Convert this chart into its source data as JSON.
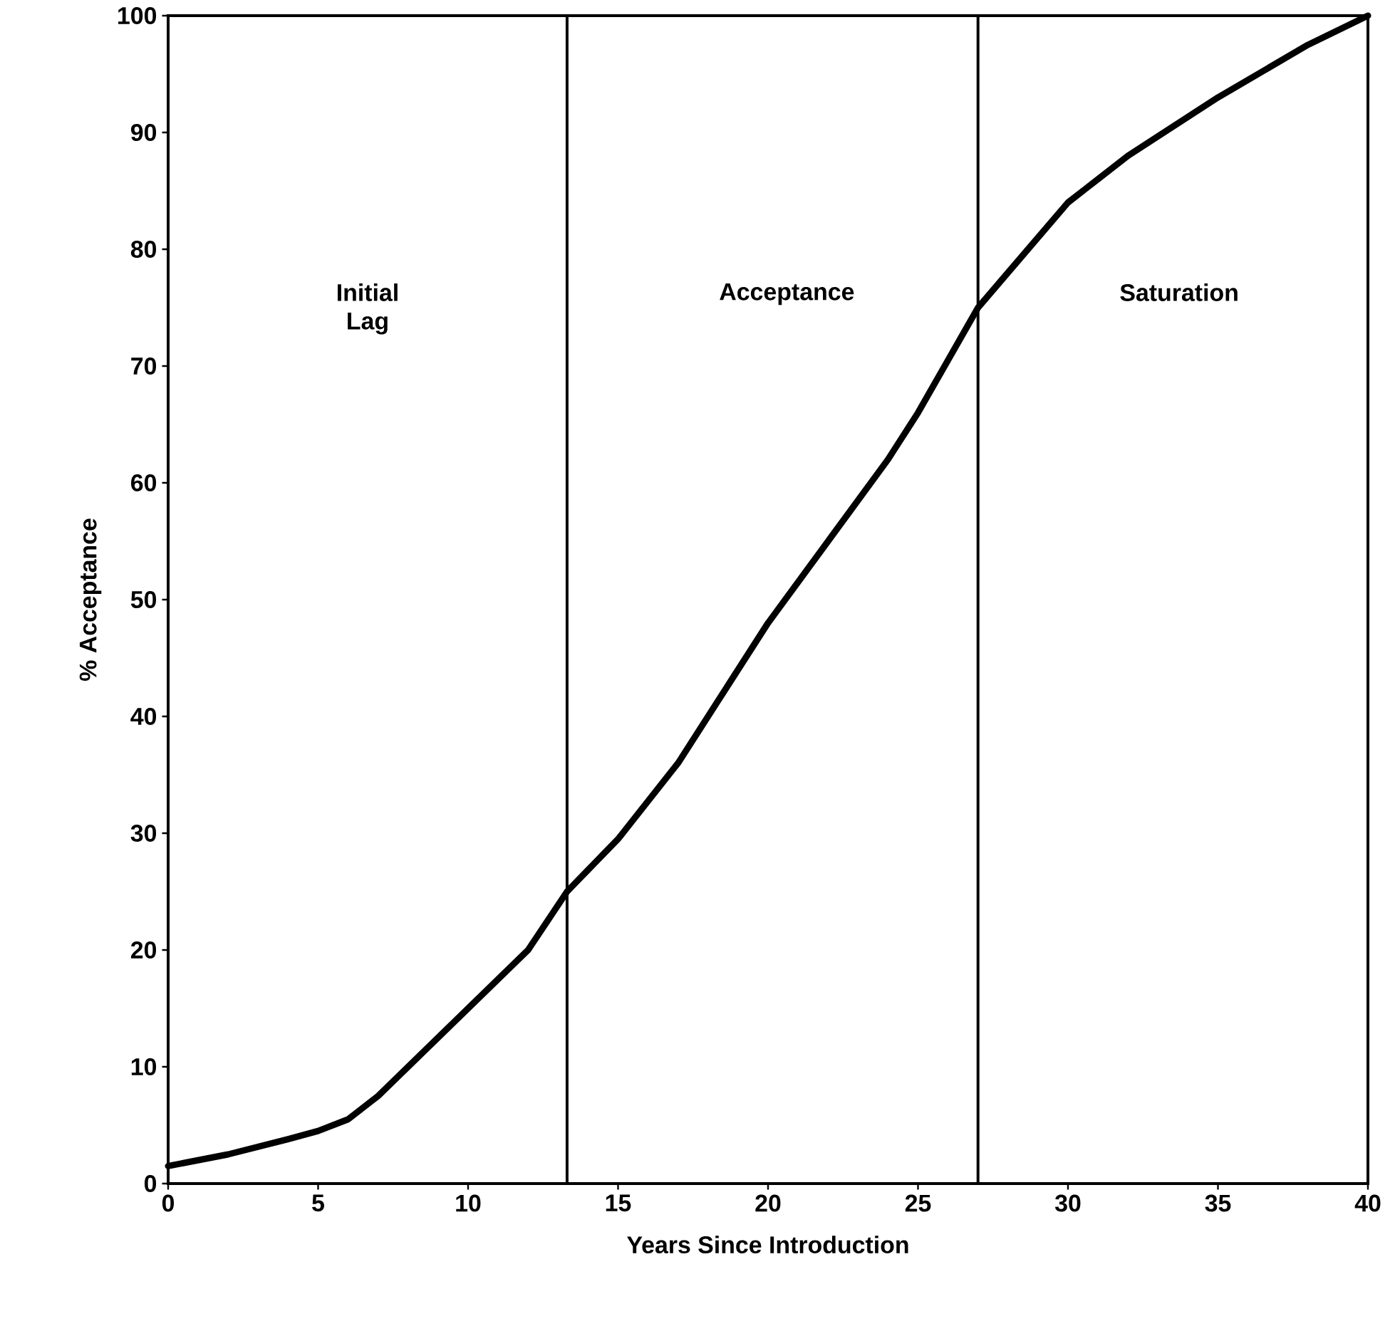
{
  "chart_data": {
    "type": "line",
    "xlabel": "Years Since Introduction",
    "ylabel": "% Acceptance",
    "x": [
      0,
      2,
      4,
      5,
      6,
      7,
      8,
      10,
      12,
      13.3,
      15,
      17,
      18,
      20,
      22,
      24,
      25,
      27,
      28,
      30,
      32,
      35,
      38,
      40
    ],
    "series": [
      {
        "color": "#000000",
        "values": [
          1.5,
          2.5,
          3.8,
          4.5,
          5.5,
          7.5,
          10,
          15,
          20,
          25,
          29.5,
          36,
          40,
          48,
          55,
          62,
          66,
          75,
          78,
          84,
          88,
          93,
          97.5,
          100
        ]
      }
    ],
    "xlim": [
      0,
      40
    ],
    "ylim": [
      0,
      100
    ],
    "xticks": [
      0,
      5,
      10,
      15,
      20,
      25,
      30,
      35,
      40
    ],
    "yticks": [
      0,
      10,
      20,
      30,
      40,
      50,
      60,
      70,
      80,
      90,
      100
    ],
    "ref_lines": [
      {
        "axis": "x",
        "value": 13.3
      },
      {
        "axis": "x",
        "value": 27
      }
    ],
    "annotations": [
      "Initial Lag",
      "Acceptance",
      "Saturation"
    ],
    "grid": false,
    "marker": "none",
    "line_style": "solid"
  }
}
